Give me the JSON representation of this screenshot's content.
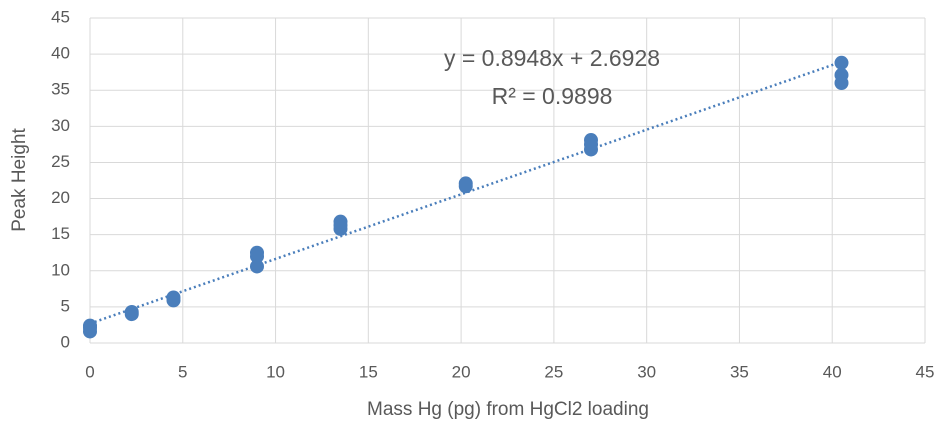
{
  "chart_data": {
    "type": "scatter",
    "x_label": "Mass Hg (pg) from HgCl2 loading",
    "y_label": "Peak Height",
    "x": [
      0,
      0,
      0,
      2.25,
      2.25,
      4.5,
      4.5,
      9,
      9,
      9,
      13.5,
      13.5,
      13.5,
      20.25,
      20.25,
      27,
      27,
      27,
      40.5,
      40.5,
      40.5
    ],
    "series": [
      {
        "color": "#4a7ebb",
        "values": [
          1.6,
          2.1,
          2.4,
          4.0,
          4.3,
          5.9,
          6.3,
          10.6,
          12.0,
          12.5,
          15.8,
          16.3,
          16.8,
          21.7,
          22.1,
          26.8,
          27.5,
          28.1,
          36.0,
          37.1,
          38.8
        ]
      }
    ],
    "trendline": {
      "slope": 0.8948,
      "intercept": 2.6928,
      "color": "#4a7ebb",
      "equation": "y = 0.8948x + 2.6928",
      "r2_label": "R² = 0.9898"
    },
    "xlim": [
      0,
      45
    ],
    "xticks": [
      0,
      5,
      10,
      15,
      20,
      25,
      30,
      35,
      40,
      45
    ],
    "ylim": [
      0,
      45
    ],
    "yticks": [
      0,
      5,
      10,
      15,
      20,
      25,
      30,
      35,
      40,
      45
    ],
    "grid": true
  }
}
